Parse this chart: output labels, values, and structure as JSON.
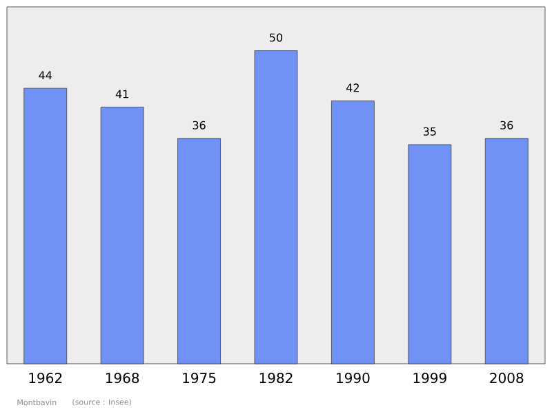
{
  "chart_data": {
    "type": "bar",
    "categories": [
      "1962",
      "1968",
      "1975",
      "1982",
      "1990",
      "1999",
      "2008"
    ],
    "values": [
      44,
      41,
      36,
      50,
      42,
      35,
      36
    ],
    "color": "#7091f5",
    "data_labels": true,
    "annotations": [
      "Montbavin",
      "(source : Insee)"
    ]
  }
}
